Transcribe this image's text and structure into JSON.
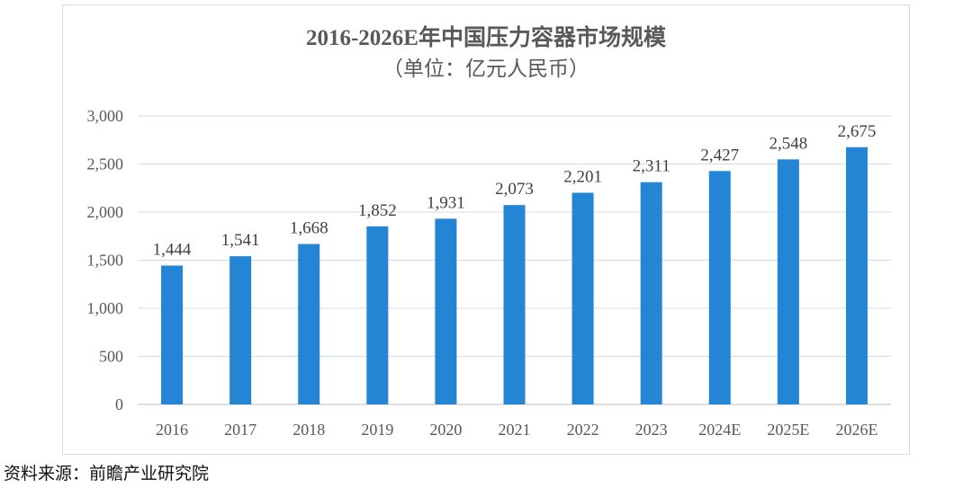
{
  "chart_data": {
    "type": "bar",
    "title": "2016-2026E年中国压力容器市场规模",
    "subtitle": "（单位：亿元人民币）",
    "categories": [
      "2016",
      "2017",
      "2018",
      "2019",
      "2020",
      "2021",
      "2022",
      "2023",
      "2024E",
      "2025E",
      "2026E"
    ],
    "values": [
      1444,
      1541,
      1668,
      1852,
      1931,
      2073,
      2201,
      2311,
      2427,
      2548,
      2675
    ],
    "data_labels": [
      "1,444",
      "1,541",
      "1,668",
      "1,852",
      "1,931",
      "2,073",
      "2,201",
      "2,311",
      "2,427",
      "2,548",
      "2,675"
    ],
    "yticks": [
      "0",
      "500",
      "1,000",
      "1,500",
      "2,000",
      "2,500",
      "3,000"
    ],
    "ylim": [
      0,
      3000
    ],
    "xlabel": "",
    "ylabel": "",
    "grid": true,
    "legend": "none",
    "bar_color": "#2385D3"
  },
  "source": "资料来源：前瞻产业研究院"
}
